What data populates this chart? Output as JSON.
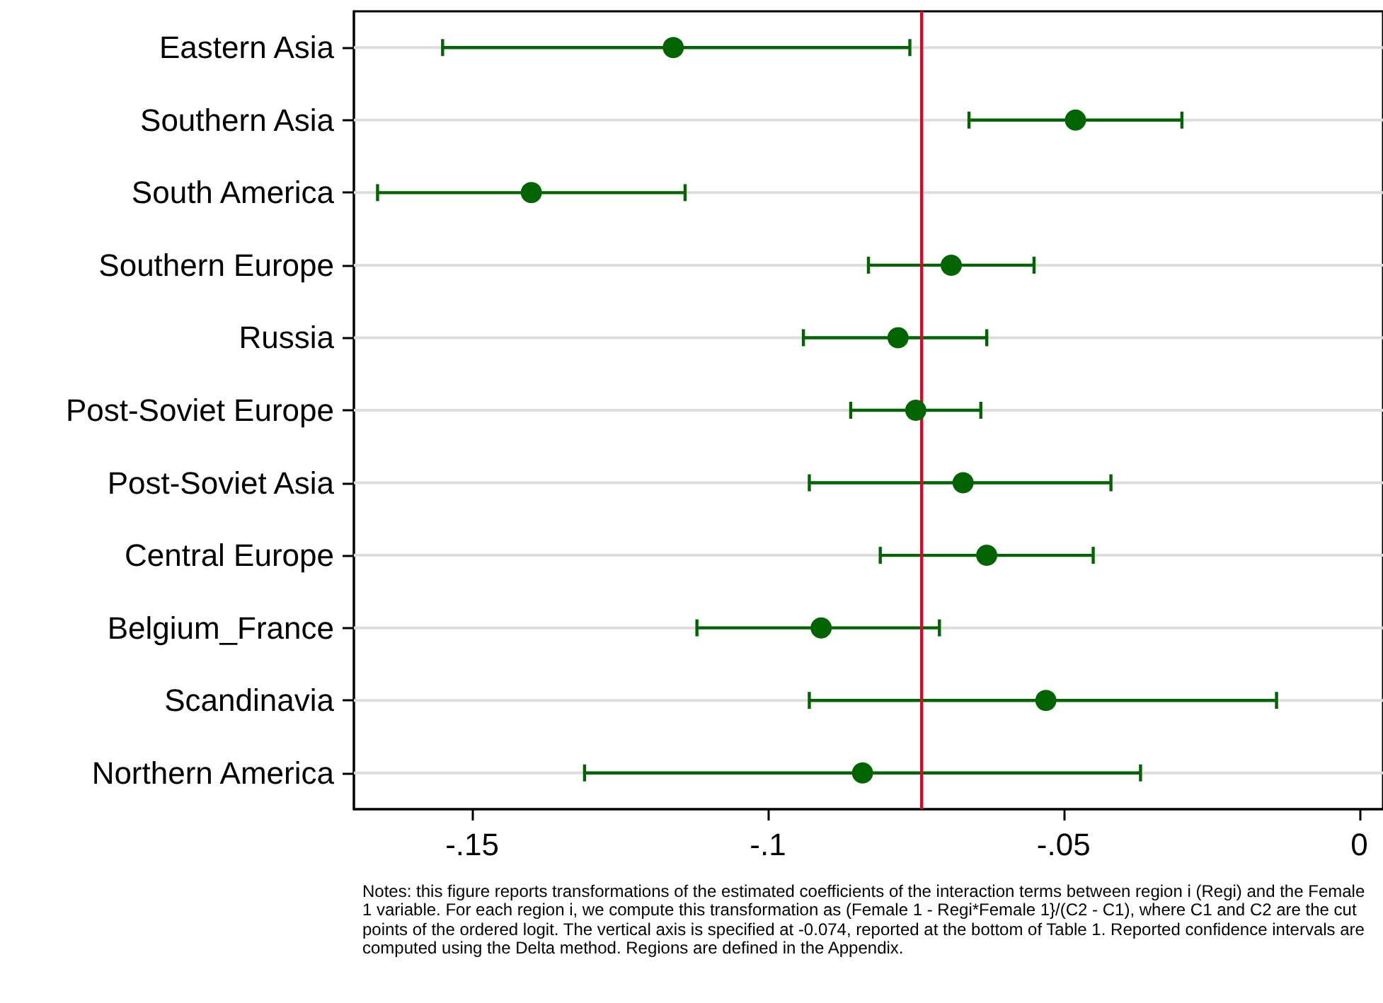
{
  "chart_data": {
    "type": "scatter",
    "orientation": "horizontal",
    "categories": [
      "Eastern Asia",
      "Southern Asia",
      "South America",
      "Southern Europe",
      "Russia",
      "Post-Soviet Europe",
      "Post-Soviet Asia",
      "Central Europe",
      "Belgium_France",
      "Scandinavia",
      "Northern America"
    ],
    "series": [
      {
        "color": "#006400",
        "values": [
          -0.116,
          -0.048,
          -0.14,
          -0.069,
          -0.078,
          -0.075,
          -0.067,
          -0.063,
          -0.091,
          -0.053,
          -0.084
        ],
        "errors": [
          [
            -0.155,
            -0.076
          ],
          [
            -0.066,
            -0.03
          ],
          [
            -0.166,
            -0.114
          ],
          [
            -0.083,
            -0.055
          ],
          [
            -0.094,
            -0.063
          ],
          [
            -0.086,
            -0.064
          ],
          [
            -0.093,
            -0.042
          ],
          [
            -0.081,
            -0.045
          ],
          [
            -0.112,
            -0.071
          ],
          [
            -0.093,
            -0.014
          ],
          [
            -0.131,
            -0.037
          ]
        ]
      }
    ],
    "xlim": [
      -0.17,
      0.004
    ],
    "xticks": [
      {
        "value": -0.15,
        "label": "-.15"
      },
      {
        "value": -0.1,
        "label": "-.1"
      },
      {
        "value": -0.05,
        "label": "-.05"
      },
      {
        "value": 0,
        "label": "0"
      }
    ],
    "ref_lines": [
      {
        "axis": "x",
        "value": -0.074,
        "color": "#c8102e"
      }
    ],
    "grid": "y",
    "marker": "circle",
    "annotations": [
      "Notes: this figure reports transformations of the estimated coefficients of the interaction terms between region i (Regi) and the Female 1 variable. For each region i, we compute this transformation as (Female 1 - Regi*Female 1}/(C2 - C1), where C1 and C2 are the cut points of the ordered logit. The vertical axis is specified at -0.074, reported at the bottom of Table 1. Reported confidence intervals are computed using the Delta method. Regions are defined in the Appendix."
    ]
  }
}
